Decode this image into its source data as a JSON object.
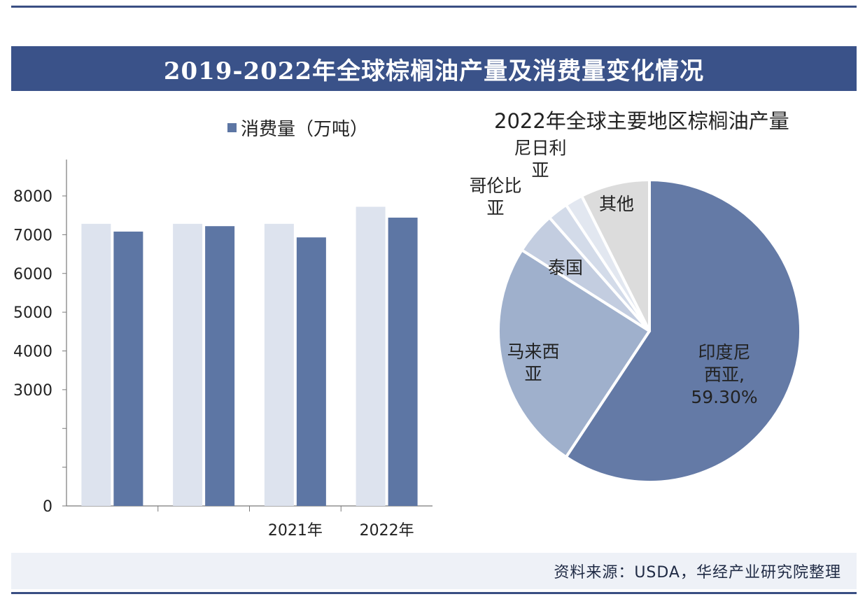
{
  "title": "2019-2022年全球棕榈油产量及消费量变化情况",
  "source": "资料来源：USDA，华经产业研究院整理",
  "colors": {
    "header": "#3a5289",
    "production": "#dde3ee",
    "consumption": "#5d76a4"
  },
  "chart_data": [
    {
      "type": "bar",
      "categories": [
        "",
        "",
        "2021年",
        "2022年"
      ],
      "series": [
        {
          "values": [
            7280,
            7280,
            7280,
            7720
          ]
        },
        {
          "name": "消费量（万吨）",
          "values": [
            7080,
            7220,
            6930,
            7440
          ]
        }
      ],
      "y_ticks": [
        "0",
        "",
        "",
        "3000",
        "4000",
        "5000",
        "6000",
        "7000",
        "8000"
      ],
      "ylim": [
        0,
        8000
      ],
      "legend": "top"
    },
    {
      "type": "pie",
      "title": "2022年全球主要地区棕榈油产量",
      "slices": [
        {
          "label_lines": [
            "印度尼",
            "西亚,",
            "59.30%"
          ],
          "value": 59.3,
          "color": "#647aa6"
        },
        {
          "label_lines": [
            "马来西",
            "亚"
          ],
          "value": 24.7,
          "color": "#9fb0cc"
        },
        {
          "label_lines": [
            "泰国"
          ],
          "value": 4.5,
          "color": "#c3cde0"
        },
        {
          "label_lines": [
            "哥伦比",
            "亚"
          ],
          "value": 2.2,
          "color": "#d3dbe9"
        },
        {
          "label_lines": [
            "尼日利",
            "亚"
          ],
          "value": 1.9,
          "color": "#e2e7f0"
        },
        {
          "label_lines": [
            "其他"
          ],
          "value": 7.4,
          "color": "#dcdcdc"
        }
      ]
    }
  ]
}
